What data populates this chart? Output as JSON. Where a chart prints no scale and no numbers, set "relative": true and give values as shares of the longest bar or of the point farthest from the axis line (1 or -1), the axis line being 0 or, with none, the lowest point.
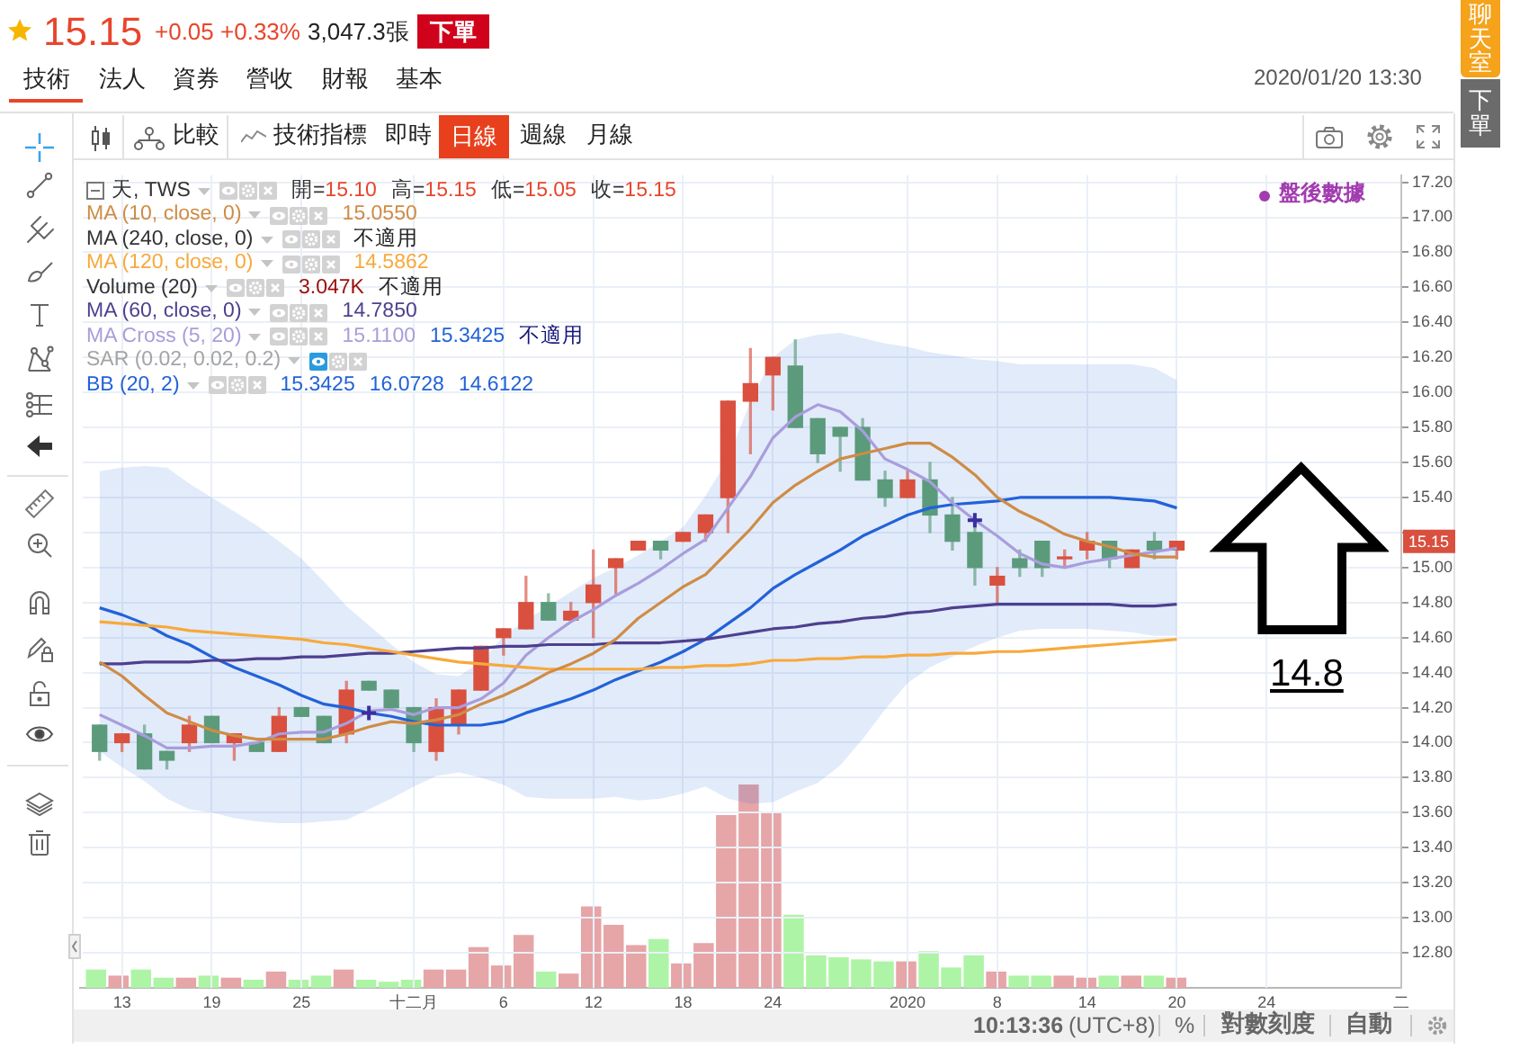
{
  "chart_data": [
    {
      "type": "candlestick",
      "categories": [
        null,
        "13",
        null,
        null,
        null,
        "19",
        null,
        null,
        null,
        "25",
        null,
        null,
        null,
        null,
        "十二月",
        null,
        null,
        null,
        "6",
        null,
        null,
        null,
        "12",
        null,
        null,
        null,
        "18",
        null,
        null,
        null,
        "24",
        null,
        null,
        null,
        null,
        null,
        "2020",
        null,
        null,
        null,
        "8",
        null,
        null,
        null,
        "14",
        null,
        null,
        null,
        "20",
        null,
        null,
        null,
        "24",
        null,
        null,
        null,
        null,
        null,
        "二"
      ],
      "ohlc": [
        [
          14.1,
          14.1,
          13.9,
          13.95
        ],
        [
          14.0,
          14.05,
          13.95,
          14.05
        ],
        [
          14.05,
          14.1,
          13.85,
          13.85
        ],
        [
          13.95,
          13.95,
          13.85,
          13.9
        ],
        [
          14.0,
          14.15,
          13.95,
          14.1
        ],
        [
          14.15,
          14.15,
          14.0,
          14.0
        ],
        [
          14.0,
          14.05,
          13.9,
          14.05
        ],
        [
          14.0,
          14.0,
          13.95,
          13.95
        ],
        [
          13.95,
          14.2,
          13.95,
          14.15
        ],
        [
          14.2,
          14.2,
          14.15,
          14.15
        ],
        [
          14.15,
          14.15,
          14.0,
          14.0
        ],
        [
          14.05,
          14.35,
          14.0,
          14.3
        ],
        [
          14.35,
          14.35,
          14.3,
          14.3
        ],
        [
          14.3,
          14.3,
          14.2,
          14.2
        ],
        [
          14.2,
          14.2,
          13.95,
          14.0
        ],
        [
          13.95,
          14.25,
          13.9,
          14.2
        ],
        [
          14.1,
          14.3,
          14.05,
          14.3
        ],
        [
          14.3,
          14.55,
          14.3,
          14.55
        ],
        [
          14.6,
          14.65,
          14.5,
          14.65
        ],
        [
          14.65,
          14.95,
          14.65,
          14.8
        ],
        [
          14.8,
          14.85,
          14.7,
          14.7
        ],
        [
          14.7,
          14.8,
          14.7,
          14.75
        ],
        [
          14.8,
          15.1,
          14.6,
          14.9
        ],
        [
          15.0,
          15.05,
          14.85,
          15.05
        ],
        [
          15.1,
          15.15,
          15.1,
          15.15
        ],
        [
          15.15,
          15.15,
          15.05,
          15.1
        ],
        [
          15.15,
          15.2,
          15.15,
          15.2
        ],
        [
          15.2,
          15.3,
          15.15,
          15.3
        ],
        [
          15.4,
          15.95,
          15.2,
          15.95
        ],
        [
          15.95,
          16.25,
          15.65,
          16.05
        ],
        [
          16.1,
          16.2,
          15.9,
          16.2
        ],
        [
          16.15,
          16.3,
          15.8,
          15.8
        ],
        [
          15.85,
          15.85,
          15.6,
          15.65
        ],
        [
          15.8,
          15.8,
          15.55,
          15.75
        ],
        [
          15.8,
          15.85,
          15.5,
          15.5
        ],
        [
          15.5,
          15.55,
          15.35,
          15.4
        ],
        [
          15.4,
          15.55,
          15.4,
          15.5
        ],
        [
          15.5,
          15.6,
          15.2,
          15.3
        ],
        [
          15.3,
          15.4,
          15.1,
          15.15
        ],
        [
          15.2,
          15.25,
          14.9,
          15.0
        ],
        [
          14.9,
          15.0,
          14.8,
          14.95
        ],
        [
          15.05,
          15.1,
          14.95,
          15.0
        ],
        [
          15.15,
          15.15,
          14.95,
          15.0
        ],
        [
          15.05,
          15.1,
          15.0,
          15.05
        ],
        [
          15.1,
          15.2,
          15.05,
          15.15
        ],
        [
          15.15,
          15.15,
          15.0,
          15.05
        ],
        [
          15.0,
          15.1,
          15.0,
          15.1
        ],
        [
          15.15,
          15.2,
          15.05,
          15.1
        ],
        [
          15.1,
          15.15,
          15.05,
          15.15
        ],
        null,
        null,
        null,
        null,
        null,
        null,
        null,
        null,
        null,
        null
      ],
      "colors": [
        "#5b9b7c",
        "#d9503f",
        "#5b9b7c",
        "#5b9b7c",
        "#d9503f",
        "#5b9b7c",
        "#d9503f",
        "#5b9b7c",
        "#d9503f",
        "#5b9b7c",
        "#5b9b7c",
        "#d9503f",
        "#5b9b7c",
        "#5b9b7c",
        "#5b9b7c",
        "#d9503f",
        "#d9503f",
        "#d9503f",
        "#d9503f",
        "#d9503f",
        "#5b9b7c",
        "#d9503f",
        "#d9503f",
        "#d9503f",
        "#d9503f",
        "#5b9b7c",
        "#d9503f",
        "#d9503f",
        "#d9503f",
        "#d9503f",
        "#d9503f",
        "#5b9b7c",
        "#5b9b7c",
        "#5b9b7c",
        "#5b9b7c",
        "#5b9b7c",
        "#d9503f",
        "#5b9b7c",
        "#5b9b7c",
        "#5b9b7c",
        "#d9503f",
        "#5b9b7c",
        "#5b9b7c",
        "#d9503f",
        "#d9503f",
        "#5b9b7c",
        "#d9503f",
        "#5b9b7c",
        "#d9503f",
        null,
        null,
        null,
        null,
        null,
        null,
        null,
        null,
        null,
        null
      ],
      "series": [
        {
          "name": "MA (10, close, 0)",
          "type": "line",
          "color": "#cf8c45",
          "values": [
            14.46,
            14.38,
            14.27,
            14.17,
            14.12,
            14.07,
            14.04,
            14.02,
            14.02,
            14.02,
            14.02,
            14.05,
            14.09,
            14.12,
            14.11,
            14.13,
            14.16,
            14.22,
            14.27,
            14.33,
            14.4,
            14.45,
            14.51,
            14.59,
            14.71,
            14.8,
            14.89,
            14.96,
            15.09,
            15.22,
            15.37,
            15.47,
            15.55,
            15.62,
            15.65,
            15.68,
            15.71,
            15.71,
            15.63,
            15.53,
            15.4,
            15.32,
            15.26,
            15.19,
            15.15,
            15.12,
            15.08,
            15.06,
            15.06,
            null,
            null,
            null,
            null,
            null,
            null,
            null,
            null,
            null,
            null
          ]
        },
        {
          "name": "MA (120, close, 0)",
          "type": "line",
          "color": "#f7a93b",
          "values": [
            14.69,
            14.68,
            14.67,
            14.66,
            14.64,
            14.63,
            14.62,
            14.61,
            14.6,
            14.59,
            14.57,
            14.56,
            14.54,
            14.52,
            14.5,
            14.48,
            14.46,
            14.45,
            14.44,
            14.43,
            14.42,
            14.42,
            14.42,
            14.42,
            14.42,
            14.43,
            14.43,
            14.44,
            14.44,
            14.45,
            14.47,
            14.47,
            14.48,
            14.48,
            14.49,
            14.49,
            14.5,
            14.5,
            14.51,
            14.51,
            14.52,
            14.52,
            14.53,
            14.54,
            14.55,
            14.56,
            14.57,
            14.58,
            14.59,
            null,
            null,
            null,
            null,
            null,
            null,
            null,
            null,
            null,
            null
          ]
        },
        {
          "name": "MA (60, close, 0)",
          "type": "line",
          "color": "#4e3f8f",
          "values": [
            14.45,
            14.45,
            14.46,
            14.46,
            14.46,
            14.47,
            14.47,
            14.48,
            14.48,
            14.49,
            14.49,
            14.5,
            14.51,
            14.51,
            14.52,
            14.53,
            14.54,
            14.54,
            14.55,
            14.55,
            14.56,
            14.56,
            14.56,
            14.57,
            14.57,
            14.57,
            14.58,
            14.59,
            14.61,
            14.63,
            14.65,
            14.66,
            14.68,
            14.69,
            14.71,
            14.72,
            14.74,
            14.75,
            14.77,
            14.78,
            14.79,
            14.79,
            14.79,
            14.79,
            14.79,
            14.79,
            14.78,
            14.78,
            14.79,
            null,
            null,
            null,
            null,
            null,
            null,
            null,
            null,
            null,
            null
          ]
        },
        {
          "name": "MA Cross (5, 20)",
          "type": "line",
          "color": "#a99ddc",
          "values": [
            14.16,
            14.1,
            14.04,
            13.97,
            13.97,
            13.98,
            13.98,
            14.0,
            14.05,
            14.06,
            14.06,
            14.11,
            14.18,
            14.19,
            14.16,
            14.2,
            14.2,
            14.25,
            14.34,
            14.5,
            14.6,
            14.69,
            14.76,
            14.84,
            14.91,
            14.99,
            15.08,
            15.16,
            15.34,
            15.52,
            15.74,
            15.86,
            15.93,
            15.89,
            15.78,
            15.62,
            15.56,
            15.49,
            15.37,
            15.27,
            15.18,
            15.08,
            15.02,
            15.0,
            15.03,
            15.05,
            15.07,
            15.09,
            15.11,
            null,
            null,
            null,
            null,
            null,
            null,
            null,
            null,
            null,
            null
          ]
        },
        {
          "type": "scatter",
          "color": "#3b2f9e",
          "marker": "cross",
          "values": [
            null,
            null,
            null,
            null,
            null,
            null,
            null,
            null,
            null,
            null,
            null,
            null,
            14.17,
            null,
            null,
            null,
            null,
            null,
            null,
            null,
            null,
            null,
            null,
            null,
            null,
            null,
            null,
            null,
            null,
            null,
            null,
            null,
            null,
            null,
            null,
            null,
            null,
            null,
            null,
            15.27,
            null,
            null,
            null,
            null,
            null,
            null,
            null,
            null,
            null,
            null,
            null,
            null,
            null,
            null,
            null,
            null,
            null,
            null,
            null
          ]
        },
        {
          "name": "BB (20, 2)",
          "type": "line",
          "color": "#2262d8",
          "values": [
            14.77,
            14.73,
            14.68,
            14.61,
            14.56,
            14.49,
            14.43,
            14.38,
            14.33,
            14.27,
            14.22,
            14.2,
            14.17,
            14.15,
            14.12,
            14.1,
            14.1,
            14.1,
            14.12,
            14.17,
            14.21,
            14.25,
            14.3,
            14.36,
            14.41,
            14.46,
            14.52,
            14.59,
            14.68,
            14.77,
            14.88,
            14.96,
            15.03,
            15.1,
            15.18,
            15.24,
            15.3,
            15.34,
            15.36,
            15.37,
            15.38,
            15.4,
            15.4,
            15.4,
            15.4,
            15.4,
            15.39,
            15.38,
            15.34,
            null,
            null,
            null,
            null,
            null,
            null,
            null,
            null,
            null,
            null
          ],
          "lower": [
            13.95,
            13.86,
            13.78,
            13.68,
            13.62,
            13.6,
            13.57,
            13.55,
            13.54,
            13.54,
            13.55,
            13.56,
            13.62,
            13.68,
            13.75,
            13.81,
            13.83,
            13.8,
            13.76,
            13.69,
            13.68,
            13.68,
            13.68,
            13.69,
            13.67,
            13.68,
            13.71,
            13.75,
            13.68,
            13.65,
            13.66,
            13.72,
            13.77,
            13.87,
            14.02,
            14.19,
            14.34,
            14.43,
            14.49,
            14.55,
            14.6,
            14.64,
            14.65,
            14.65,
            14.65,
            14.64,
            14.63,
            14.61,
            14.61,
            null,
            null,
            null,
            null,
            null,
            null,
            null,
            null,
            null,
            null
          ],
          "upper": [
            15.55,
            15.57,
            15.58,
            15.57,
            15.48,
            15.4,
            15.32,
            15.24,
            15.15,
            15.05,
            14.92,
            14.78,
            14.67,
            14.56,
            14.46,
            14.39,
            14.38,
            14.46,
            14.61,
            14.7,
            14.78,
            14.86,
            14.94,
            15.0,
            15.07,
            15.15,
            15.23,
            15.41,
            15.62,
            15.95,
            16.2,
            16.3,
            16.33,
            16.34,
            16.31,
            16.28,
            16.26,
            16.23,
            16.21,
            16.19,
            16.18,
            16.16,
            16.16,
            16.16,
            16.16,
            16.16,
            16.16,
            16.14,
            16.07,
            null,
            null,
            null,
            null,
            null,
            null,
            null,
            null,
            null,
            null
          ]
        }
      ],
      "ylim": [
        12.6,
        17.24
      ],
      "yticks": [
        {
          "value": 12.8,
          "label": "12.80"
        },
        {
          "value": 13,
          "label": "13.00"
        },
        {
          "value": 13.2,
          "label": "13.20"
        },
        {
          "value": 13.4,
          "label": "13.40"
        },
        {
          "value": 13.6,
          "label": "13.60"
        },
        {
          "value": 13.8,
          "label": "13.80"
        },
        {
          "value": 14,
          "label": "14.00"
        },
        {
          "value": 14.2,
          "label": "14.20"
        },
        {
          "value": 14.4,
          "label": "14.40"
        },
        {
          "value": 14.6,
          "label": "14.60"
        },
        {
          "value": 14.8,
          "label": "14.80"
        },
        {
          "value": 15,
          "label": "15.00"
        },
        {
          "value": 15.2,
          "label": null
        },
        {
          "value": 15.4,
          "label": "15.40"
        },
        {
          "value": 15.6,
          "label": "15.60"
        },
        {
          "value": 15.8,
          "label": "15.80"
        },
        {
          "value": 16,
          "label": "16.00"
        },
        {
          "value": 16.2,
          "label": "16.20"
        },
        {
          "value": 16.4,
          "label": "16.40"
        },
        {
          "value": 16.6,
          "label": "16.60"
        },
        {
          "value": 16.8,
          "label": "16.80"
        },
        {
          "value": 17,
          "label": "17.00"
        },
        {
          "value": 17.2,
          "label": "17.20"
        }
      ],
      "grid": true,
      "legend": "top left",
      "annotations": [
        "15.15",
        "+0.05 +0.33%",
        "3,047.3張",
        "下單",
        "技術",
        "法人",
        "資券",
        "營收",
        "財報",
        "基本",
        "2020/01/20 13:30",
        "比較",
        "技術指標",
        "即時",
        "日線",
        "週線",
        "月線",
        "天, TWS",
        "開=",
        "15.10",
        "高=",
        "15.15",
        "低=",
        "15.05",
        "收=",
        "15.15",
        "15.0550",
        "MA (240, close, 0)",
        "不適用",
        "14.5862",
        "14.7850",
        "15.1100",
        "15.3425",
        "不適用",
        "SAR (0.02, 0.02, 0.2)",
        "15.3425",
        "16.0728",
        "14.6122",
        "盤後數據",
        {
          "text": "15.15",
          "y": 15.15
        },
        "14.8",
        "10:13:36",
        "(UTC+8)",
        "%",
        "對數刻度",
        "自動",
        "聊天室",
        "下單"
      ]
    },
    {
      "type": "bar",
      "relative": true,
      "tick_labels": false,
      "legend": "top left",
      "categories": [
        null,
        null,
        null,
        null,
        null,
        null,
        null,
        null,
        null,
        null,
        null,
        null,
        null,
        null,
        null,
        null,
        null,
        null,
        null,
        null,
        null,
        null,
        null,
        null,
        null,
        null,
        null,
        null,
        null,
        null,
        null,
        null,
        null,
        null,
        null,
        null,
        null,
        null,
        null,
        null,
        null,
        null,
        null,
        null,
        null,
        null,
        null,
        null,
        null,
        null,
        null,
        null,
        null,
        null,
        null,
        null,
        null,
        null,
        null
      ],
      "series": [
        {
          "name": "Volume (20)",
          "values": [
            0.09,
            0.06,
            0.09,
            0.05,
            0.05,
            0.06,
            0.05,
            0.04,
            0.08,
            0.04,
            0.06,
            0.09,
            0.04,
            0.03,
            0.04,
            0.09,
            0.09,
            0.2,
            0.11,
            0.26,
            0.08,
            0.07,
            0.4,
            0.31,
            0.21,
            0.24,
            0.12,
            0.22,
            0.85,
            1,
            0.86,
            0.36,
            0.16,
            0.15,
            0.14,
            0.13,
            0.13,
            0.18,
            0.1,
            0.16,
            0.08,
            0.06,
            0.06,
            0.06,
            0.05,
            0.06,
            0.06,
            0.06,
            0.05,
            null,
            null,
            null,
            null,
            null,
            null,
            null,
            null,
            null,
            null
          ],
          "colors": [
            "#aef4a6",
            "#e6a5a7",
            "#aef4a6",
            "#aef4a6",
            "#e6a5a7",
            "#aef4a6",
            "#e6a5a7",
            "#aef4a6",
            "#e6a5a7",
            "#aef4a6",
            "#aef4a6",
            "#e6a5a7",
            "#aef4a6",
            "#aef4a6",
            "#aef4a6",
            "#e6a5a7",
            "#e6a5a7",
            "#e6a5a7",
            "#e6a5a7",
            "#e6a5a7",
            "#aef4a6",
            "#e6a5a7",
            "#e6a5a7",
            "#e6a5a7",
            "#e6a5a7",
            "#aef4a6",
            "#e6a5a7",
            "#e6a5a7",
            "#e6a5a7",
            "#e6a5a7",
            "#e6a5a7",
            "#aef4a6",
            "#aef4a6",
            "#aef4a6",
            "#aef4a6",
            "#aef4a6",
            "#e6a5a7",
            "#aef4a6",
            "#aef4a6",
            "#aef4a6",
            "#e6a5a7",
            "#aef4a6",
            "#aef4a6",
            "#e6a5a7",
            "#e6a5a7",
            "#aef4a6",
            "#e6a5a7",
            "#aef4a6",
            "#e6a5a7",
            null,
            null,
            null,
            null,
            null,
            null,
            null,
            null,
            null,
            null
          ]
        }
      ],
      "annotations": [
        "3.047K",
        "不適用"
      ]
    }
  ]
}
